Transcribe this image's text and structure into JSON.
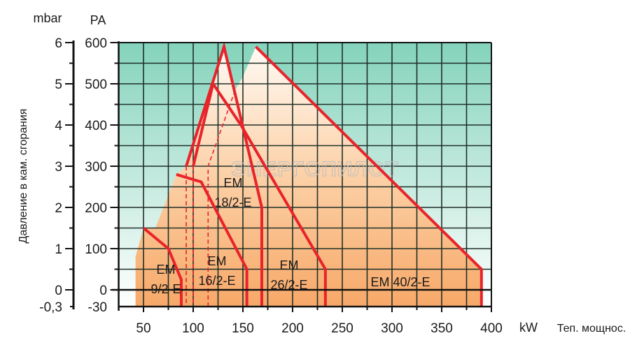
{
  "chart_data": {
    "type": "area",
    "xlabel_unit": "kW",
    "xlabel": "Теп. мощнос.",
    "ylabel": "Давление в кам. сгорания",
    "yunit_left": "mbar",
    "yunit_right": "PA",
    "xlim": [
      25,
      400
    ],
    "ylim": [
      -30,
      600
    ],
    "x_ticks": [
      "50",
      "100",
      "150",
      "200",
      "250",
      "300",
      "350",
      "400"
    ],
    "y_ticks_pa": [
      "600",
      "500",
      "400",
      "300",
      "200",
      "100",
      "0",
      "-30"
    ],
    "y_ticks_mbar": [
      "6",
      "5",
      "4",
      "3",
      "2",
      "1",
      "0",
      "-0,3"
    ],
    "grid": true,
    "watermark": "ЭНЕРГОПИЛОТ",
    "colors": {
      "grid_top": "#84d3bb",
      "fill_bottom": "#f7a868",
      "curve": "#e8242b"
    },
    "envelope": [
      [
        42,
        -30
      ],
      [
        42,
        80
      ],
      [
        50,
        150
      ],
      [
        62,
        150
      ],
      [
        83,
        280
      ],
      [
        93,
        300
      ],
      [
        131,
        590
      ],
      [
        141.5,
        482
      ],
      [
        150,
        517
      ],
      [
        163,
        590
      ],
      [
        390,
        50
      ],
      [
        390,
        -30
      ]
    ],
    "series": [
      {
        "name": "EM 9/2-E",
        "label_lines": [
          "EM",
          "9/2-E"
        ],
        "points": [
          [
            50,
            150
          ],
          [
            75,
            100
          ],
          [
            88,
            25
          ],
          [
            88,
            -30
          ]
        ]
      },
      {
        "name": "EM 16/2-E",
        "label_lines": [
          "EM",
          "16/2-E"
        ],
        "points": [
          [
            83,
            280
          ],
          [
            108,
            262
          ],
          [
            154,
            50
          ],
          [
            154,
            -30
          ]
        ]
      },
      {
        "name": "EM 18/2-E",
        "label_lines": [
          "EM",
          "18/2-E"
        ],
        "points": [
          [
            93,
            300
          ],
          [
            131,
            590
          ],
          [
            169,
            200
          ],
          [
            169,
            -30
          ]
        ]
      },
      {
        "name": "EM 26/2-E",
        "label_lines": [
          "EM",
          "26/2-E"
        ],
        "points": [
          [
            100,
            300
          ],
          [
            120,
            500
          ],
          [
            148,
            400
          ],
          [
            233,
            50
          ],
          [
            233,
            -30
          ]
        ]
      },
      {
        "name": "EM 40/2-E",
        "label_lines": [
          "EM 40/2-E"
        ],
        "points": [
          [
            163,
            590
          ],
          [
            390,
            50
          ],
          [
            390,
            -30
          ]
        ]
      }
    ],
    "dashed": [
      [
        [
          93,
          300
        ],
        [
          93,
          -30
        ]
      ],
      [
        [
          100,
          300
        ],
        [
          100,
          -30
        ]
      ],
      [
        [
          115,
          -30
        ],
        [
          115,
          300
        ],
        [
          143,
          490
        ]
      ]
    ]
  }
}
